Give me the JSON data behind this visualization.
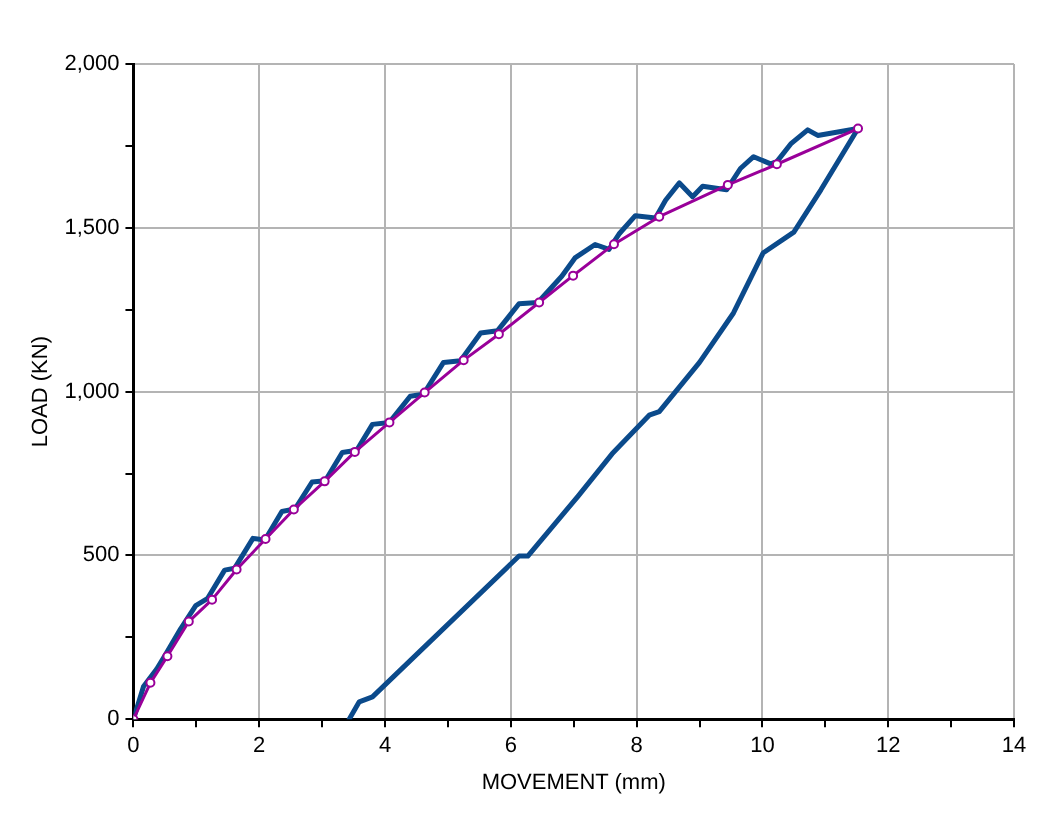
{
  "chart_data": {
    "type": "line",
    "xlabel": "MOVEMENT (mm)",
    "ylabel": "LOAD (KN)",
    "xlim": [
      0,
      14
    ],
    "ylim": [
      0,
      2000
    ],
    "xticks": [
      0,
      {
        "value": 1,
        "label": null
      },
      2,
      {
        "value": 3,
        "label": null
      },
      4,
      {
        "value": 5,
        "label": null
      },
      6,
      {
        "value": 7,
        "label": null
      },
      8,
      {
        "value": 9,
        "label": null
      },
      10,
      {
        "value": 11,
        "label": null
      },
      12,
      {
        "value": 13,
        "label": null
      },
      14
    ],
    "yticks": [
      0,
      {
        "value": 250,
        "label": null
      },
      500,
      {
        "value": 750,
        "label": null
      },
      {
        "value": 1000,
        "label": "1,000"
      },
      {
        "value": 1250,
        "label": null
      },
      {
        "value": 1500,
        "label": "1,500"
      },
      {
        "value": 1750,
        "label": null
      },
      {
        "value": 2000,
        "label": "2,000"
      }
    ],
    "grid": true,
    "legend": false,
    "line_style": "solid",
    "series": [
      {
        "color": "#0b4a8b",
        "marker": "none",
        "x": [
          0,
          0.16,
          0.37,
          0.51,
          0.75,
          0.99,
          1.18,
          1.45,
          1.61,
          1.9,
          2.09,
          2.36,
          2.57,
          2.84,
          3.05,
          3.32,
          3.55,
          3.8,
          4.07,
          4.4,
          4.61,
          4.93,
          5.2,
          5.52,
          5.79,
          6.13,
          6.43,
          6.81,
          7.02,
          7.34,
          7.56,
          7.72,
          7.98,
          8.3,
          8.46,
          8.68,
          8.89,
          9.05,
          9.43,
          9.65,
          9.86,
          10.13,
          10.23,
          10.45,
          10.72,
          10.88,
          11.52,
          10.93,
          10.5,
          10.01,
          9.54,
          9,
          8.36,
          8.2,
          7.61,
          7.07,
          6.27,
          6.13,
          3.8,
          3.59,
          3.43
        ],
        "values": [
          0,
          100,
          153,
          197,
          276,
          347,
          369,
          455,
          461,
          552,
          547,
          634,
          642,
          724,
          728,
          814,
          821,
          900,
          906,
          986,
          992,
          1089,
          1094,
          1179,
          1186,
          1268,
          1272,
          1352,
          1408,
          1449,
          1434,
          1481,
          1537,
          1530,
          1584,
          1637,
          1595,
          1627,
          1616,
          1681,
          1717,
          1695,
          1702,
          1756,
          1799,
          1782,
          1803,
          1616,
          1487,
          1423,
          1240,
          1089,
          939,
          928,
          810,
          681,
          498,
          498,
          68,
          53,
          0
        ]
      },
      {
        "color": "#990099",
        "marker": "circle",
        "x": [
          0,
          0.27,
          0.54,
          0.88,
          1.25,
          1.64,
          2.1,
          2.55,
          3.04,
          3.52,
          4.07,
          4.63,
          5.25,
          5.81,
          6.45,
          6.99,
          7.64,
          8.36,
          9.45,
          10.23,
          11.52
        ],
        "values": [
          0,
          111,
          192,
          298,
          365,
          457,
          550,
          640,
          726,
          816,
          906,
          997,
          1096,
          1175,
          1272,
          1354,
          1450,
          1534,
          1631,
          1694,
          1803
        ]
      }
    ]
  }
}
